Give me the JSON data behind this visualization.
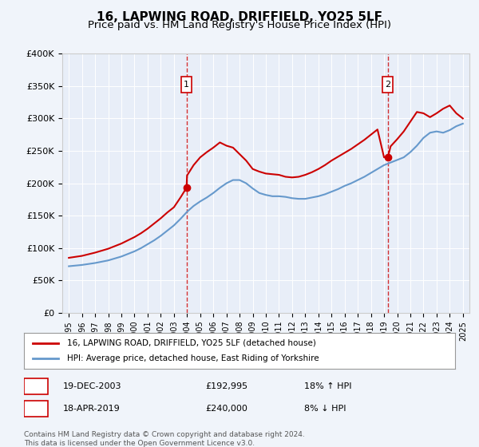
{
  "title": "16, LAPWING ROAD, DRIFFIELD, YO25 5LF",
  "subtitle": "Price paid vs. HM Land Registry's House Price Index (HPI)",
  "title_fontsize": 11,
  "subtitle_fontsize": 9.5,
  "background_color": "#f0f4fa",
  "plot_bg_color": "#e8eef8",
  "sale1": {
    "date_num": 2003.96,
    "price": 192995,
    "label": "1",
    "date_str": "19-DEC-2003",
    "hpi_pct": "18% ↑ HPI"
  },
  "sale2": {
    "date_num": 2019.29,
    "price": 240000,
    "label": "2",
    "date_str": "18-APR-2019",
    "hpi_pct": "8% ↓ HPI"
  },
  "ylim": [
    0,
    400000
  ],
  "xlim": [
    1994.5,
    2025.5
  ],
  "yticks": [
    0,
    50000,
    100000,
    150000,
    200000,
    250000,
    300000,
    350000,
    400000
  ],
  "ytick_labels": [
    "£0",
    "£50K",
    "£100K",
    "£150K",
    "£200K",
    "£250K",
    "£300K",
    "£350K",
    "£400K"
  ],
  "xticks": [
    1995,
    1996,
    1997,
    1998,
    1999,
    2000,
    2001,
    2002,
    2003,
    2004,
    2005,
    2006,
    2007,
    2008,
    2009,
    2010,
    2011,
    2012,
    2013,
    2014,
    2015,
    2016,
    2017,
    2018,
    2019,
    2020,
    2021,
    2022,
    2023,
    2024,
    2025
  ],
  "red_line_color": "#cc0000",
  "blue_line_color": "#6699cc",
  "dashed_line_color": "#cc0000",
  "legend_label_red": "16, LAPWING ROAD, DRIFFIELD, YO25 5LF (detached house)",
  "legend_label_blue": "HPI: Average price, detached house, East Riding of Yorkshire",
  "footer": "Contains HM Land Registry data © Crown copyright and database right 2024.\nThis data is licensed under the Open Government Licence v3.0.",
  "hpi_years": [
    1995,
    1995.5,
    1996,
    1996.5,
    1997,
    1997.5,
    1998,
    1998.5,
    1999,
    1999.5,
    2000,
    2000.5,
    2001,
    2001.5,
    2002,
    2002.5,
    2003,
    2003.5,
    2004,
    2004.5,
    2005,
    2005.5,
    2006,
    2006.5,
    2007,
    2007.5,
    2008,
    2008.5,
    2009,
    2009.5,
    2010,
    2010.5,
    2011,
    2011.5,
    2012,
    2012.5,
    2013,
    2013.5,
    2014,
    2014.5,
    2015,
    2015.5,
    2016,
    2016.5,
    2017,
    2017.5,
    2018,
    2018.5,
    2019,
    2019.5,
    2020,
    2020.5,
    2021,
    2021.5,
    2022,
    2022.5,
    2023,
    2023.5,
    2024,
    2024.5,
    2025
  ],
  "hpi_values": [
    72000,
    73000,
    74000,
    75500,
    77000,
    79000,
    81000,
    84000,
    87000,
    91000,
    95000,
    100000,
    106000,
    112000,
    119000,
    127000,
    135000,
    145000,
    156000,
    165000,
    172000,
    178000,
    185000,
    193000,
    200000,
    205000,
    205000,
    200000,
    192000,
    185000,
    182000,
    180000,
    180000,
    179000,
    177000,
    176000,
    176000,
    178000,
    180000,
    183000,
    187000,
    191000,
    196000,
    200000,
    205000,
    210000,
    216000,
    222000,
    228000,
    232000,
    236000,
    240000,
    248000,
    258000,
    270000,
    278000,
    280000,
    278000,
    282000,
    288000,
    292000
  ],
  "red_years": [
    1995,
    1995.5,
    1996,
    1996.5,
    1997,
    1997.5,
    1998,
    1998.5,
    1999,
    1999.5,
    2000,
    2000.5,
    2001,
    2001.5,
    2002,
    2002.5,
    2003,
    2003.5,
    2003.96,
    2004,
    2004.5,
    2005,
    2005.5,
    2006,
    2006.5,
    2007,
    2007.5,
    2008,
    2008.5,
    2009,
    2009.5,
    2010,
    2010.5,
    2011,
    2011.5,
    2012,
    2012.5,
    2013,
    2013.5,
    2014,
    2014.5,
    2015,
    2015.5,
    2016,
    2016.5,
    2017,
    2017.5,
    2018,
    2018.5,
    2019,
    2019.29,
    2019.5,
    2020,
    2020.5,
    2021,
    2021.5,
    2022,
    2022.5,
    2023,
    2023.5,
    2024,
    2024.5,
    2025
  ],
  "red_values": [
    85000,
    86500,
    88000,
    90500,
    93000,
    96000,
    99000,
    103000,
    107000,
    112000,
    117000,
    123000,
    130000,
    138000,
    146000,
    155000,
    163000,
    178000,
    192995,
    212000,
    228000,
    240000,
    248000,
    255000,
    263000,
    258000,
    255000,
    245000,
    235000,
    222000,
    218000,
    215000,
    214000,
    213000,
    210000,
    209000,
    210000,
    213000,
    217000,
    222000,
    228000,
    235000,
    241000,
    247000,
    253000,
    260000,
    267000,
    275000,
    283000,
    240000,
    240000,
    257000,
    268000,
    280000,
    295000,
    310000,
    308000,
    302000,
    308000,
    315000,
    320000,
    308000,
    300000
  ]
}
